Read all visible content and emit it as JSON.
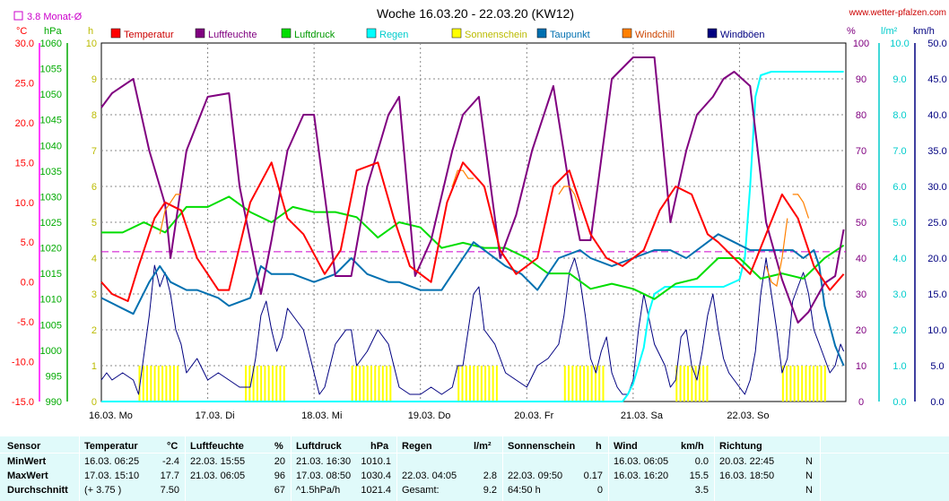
{
  "header": {
    "title": "Woche 16.03.20 - 22.03.20 (KW12)",
    "site": "www.wetter-pfalzen.com",
    "monthly_avg_label": "3.8 Monat-Ø"
  },
  "units": {
    "celsius": "°C",
    "hpa": "hPa",
    "hours": "h",
    "percent": "%",
    "rain": "l/m²",
    "speed": "km/h"
  },
  "colors": {
    "temperature": "#ff0000",
    "humidity": "#800080",
    "pressure": "#00dd00",
    "rain": "#00ffff",
    "sunshine": "#ffff00",
    "dewpoint": "#0070b0",
    "windchill": "#ff8000",
    "gust": "#000080",
    "avg_line": "#cc00cc"
  },
  "chart_data": {
    "type": "line",
    "x_tick_labels": [
      "16.03. Mo",
      "17.03. Di",
      "18.03. Mi",
      "19.03. Do",
      "20.03. Fr",
      "21.03. Sa",
      "22.03. So"
    ],
    "axes": {
      "celsius": {
        "ticks": [
          "30.0",
          "25.0",
          "20.0",
          "15.0",
          "10.0",
          "5.0",
          "0.0",
          "-5.0",
          "-10.0",
          "-15.0"
        ],
        "range": [
          -15,
          30
        ]
      },
      "hpa": {
        "ticks": [
          "1060",
          "1055",
          "1050",
          "1045",
          "1040",
          "1035",
          "1030",
          "1025",
          "1020",
          "1015",
          "1010",
          "1005",
          "1000",
          "995",
          "990"
        ],
        "range": [
          990,
          1060
        ]
      },
      "hours": {
        "ticks": [
          "10",
          "9",
          "8",
          "7",
          "6",
          "5",
          "4",
          "3",
          "2",
          "1",
          "0"
        ],
        "range": [
          0,
          10
        ]
      },
      "percent": {
        "ticks": [
          "100",
          "90",
          "80",
          "70",
          "60",
          "50",
          "40",
          "30",
          "20",
          "10",
          "0"
        ],
        "range": [
          0,
          100
        ]
      },
      "rain": {
        "ticks": [
          "10.0",
          "9.0",
          "8.0",
          "7.0",
          "6.0",
          "5.0",
          "4.0",
          "3.0",
          "2.0",
          "1.0",
          "0.0"
        ],
        "range": [
          0,
          10
        ]
      },
      "speed": {
        "ticks": [
          "50.0",
          "45.0",
          "40.0",
          "35.0",
          "30.0",
          "25.0",
          "20.0",
          "15.0",
          "10.0",
          "5.0",
          "0.0"
        ],
        "range": [
          0,
          50
        ]
      }
    },
    "monthly_avg_celsius": 3.8,
    "series": [
      {
        "name": "Temperatur",
        "axis": "celsius",
        "x": [
          0,
          0.1,
          0.25,
          0.35,
          0.5,
          0.6,
          0.75,
          0.9,
          1.1,
          1.2,
          1.4,
          1.6,
          1.75,
          1.9,
          2.1,
          2.25,
          2.4,
          2.6,
          2.75,
          2.9,
          3.1,
          3.25,
          3.4,
          3.6,
          3.75,
          3.9,
          4.1,
          4.25,
          4.4,
          4.6,
          4.75,
          4.9,
          5.1,
          5.25,
          5.4,
          5.55,
          5.7,
          5.8,
          5.95,
          6.1,
          6.25,
          6.4,
          6.55,
          6.7,
          6.85,
          6.98
        ],
        "y": [
          0,
          -1.5,
          -2.4,
          2,
          8,
          10,
          9,
          3,
          -1,
          -1,
          10,
          15,
          8,
          6,
          1,
          4,
          14,
          15,
          8,
          2,
          0,
          10,
          15,
          12,
          4,
          1,
          3,
          12,
          14,
          6,
          3,
          2,
          4,
          9,
          12,
          11,
          6,
          5,
          3,
          1,
          6,
          11,
          8,
          2,
          -1,
          1
        ]
      },
      {
        "name": "Luftfeuchte",
        "axis": "percent",
        "x": [
          0,
          0.1,
          0.3,
          0.45,
          0.6,
          0.65,
          0.8,
          1.0,
          1.2,
          1.3,
          1.5,
          1.6,
          1.75,
          1.9,
          2.0,
          2.2,
          2.35,
          2.5,
          2.7,
          2.8,
          2.95,
          3.1,
          3.3,
          3.4,
          3.55,
          3.75,
          3.9,
          4.05,
          4.25,
          4.4,
          4.5,
          4.6,
          4.8,
          5.0,
          5.2,
          5.35,
          5.5,
          5.6,
          5.75,
          5.85,
          5.95,
          6.1,
          6.25,
          6.4,
          6.55,
          6.65,
          6.8,
          6.9,
          6.98
        ],
        "y": [
          82,
          86,
          90,
          70,
          55,
          40,
          70,
          85,
          86,
          60,
          30,
          45,
          70,
          80,
          80,
          35,
          35,
          60,
          80,
          85,
          35,
          45,
          70,
          80,
          85,
          40,
          52,
          70,
          88,
          60,
          45,
          45,
          90,
          96,
          96,
          50,
          70,
          80,
          85,
          90,
          92,
          88,
          50,
          34,
          22,
          25,
          33,
          35,
          48
        ]
      },
      {
        "name": "Luftdruck",
        "axis": "hpa",
        "x": [
          0,
          0.2,
          0.4,
          0.6,
          0.8,
          1.0,
          1.2,
          1.4,
          1.6,
          1.8,
          2.0,
          2.2,
          2.4,
          2.6,
          2.8,
          3.0,
          3.2,
          3.4,
          3.6,
          3.8,
          4.0,
          4.2,
          4.4,
          4.6,
          4.8,
          5.0,
          5.2,
          5.4,
          5.6,
          5.8,
          6.0,
          6.2,
          6.4,
          6.6,
          6.8,
          6.98
        ],
        "y": [
          1023,
          1023,
          1025,
          1023,
          1028,
          1028,
          1030,
          1027,
          1025,
          1028,
          1027,
          1027,
          1026,
          1022,
          1025,
          1024,
          1020,
          1021,
          1020,
          1020,
          1018,
          1015,
          1015,
          1012,
          1013,
          1012,
          1010,
          1013,
          1014,
          1018,
          1018,
          1014,
          1015,
          1014,
          1018,
          1020.5
        ]
      },
      {
        "name": "Regen",
        "axis": "rain",
        "x": [
          0,
          4.9,
          4.95,
          5.0,
          5.05,
          5.1,
          5.15,
          5.2,
          5.3,
          5.5,
          5.7,
          5.85,
          6.0,
          6.05,
          6.1,
          6.15,
          6.2,
          6.3,
          6.98
        ],
        "y": [
          0,
          0,
          0.2,
          0.5,
          1.0,
          1.5,
          2.5,
          3.0,
          3.2,
          3.2,
          3.2,
          3.2,
          3.4,
          4.0,
          6.0,
          8.5,
          9.1,
          9.2,
          9.2
        ]
      },
      {
        "name": "Sonnenschein",
        "axis": "hours",
        "type": "bars",
        "blocks": [
          [
            0.35,
            0.72,
            1.0
          ],
          [
            1.35,
            1.72,
            1.0
          ],
          [
            2.35,
            2.72,
            1.0
          ],
          [
            3.35,
            3.72,
            1.0
          ],
          [
            4.35,
            4.72,
            1.0
          ],
          [
            5.4,
            5.72,
            1.0
          ],
          [
            6.4,
            6.82,
            1.0
          ]
        ]
      },
      {
        "name": "Taupunkt",
        "axis": "celsius",
        "x": [
          0,
          0.15,
          0.3,
          0.45,
          0.55,
          0.65,
          0.8,
          0.9,
          1.1,
          1.2,
          1.4,
          1.5,
          1.6,
          1.8,
          2.0,
          2.2,
          2.35,
          2.5,
          2.7,
          2.8,
          3.0,
          3.2,
          3.4,
          3.5,
          3.6,
          3.8,
          3.95,
          4.1,
          4.3,
          4.5,
          4.6,
          4.8,
          5.0,
          5.2,
          5.35,
          5.5,
          5.7,
          5.8,
          5.95,
          6.1,
          6.3,
          6.5,
          6.6,
          6.7,
          6.75,
          6.8,
          6.9,
          6.98
        ],
        "y": [
          -2,
          -3,
          -4,
          0,
          2,
          0,
          -1,
          -1,
          -2,
          -3,
          -2,
          2,
          1,
          1,
          0,
          1,
          3,
          1,
          0,
          0,
          -1,
          -1,
          3,
          5,
          4,
          2,
          1,
          -1,
          3,
          4,
          3,
          2,
          3,
          4,
          4,
          3,
          5,
          6,
          5,
          4,
          4,
          4,
          3,
          4,
          2,
          -3,
          -8,
          -10.5
        ]
      },
      {
        "name": "Windchill",
        "axis": "celsius",
        "x": [
          0.55,
          0.6,
          0.65,
          0.7,
          0.75,
          3.3,
          3.35,
          3.4,
          3.45,
          3.5,
          4.3,
          4.35,
          4.4,
          4.45,
          4.5,
          6.25,
          6.3,
          6.35,
          6.4,
          6.45,
          6.5,
          6.55,
          6.6,
          6.65
        ],
        "y": [
          6,
          9,
          10,
          11,
          11,
          12,
          14,
          14,
          13,
          13,
          11,
          12,
          12,
          11,
          9,
          2,
          0,
          -0.5,
          3,
          8,
          11,
          11,
          10,
          8
        ]
      },
      {
        "name": "Windböen",
        "axis": "speed",
        "x": [
          0,
          0.05,
          0.1,
          0.2,
          0.3,
          0.35,
          0.45,
          0.5,
          0.55,
          0.6,
          0.65,
          0.7,
          0.75,
          0.8,
          0.9,
          1.0,
          1.1,
          1.2,
          1.3,
          1.4,
          1.45,
          1.5,
          1.55,
          1.6,
          1.65,
          1.7,
          1.75,
          1.8,
          1.9,
          2.0,
          2.05,
          2.1,
          2.2,
          2.3,
          2.35,
          2.4,
          2.5,
          2.6,
          2.7,
          2.8,
          2.9,
          3.0,
          3.1,
          3.2,
          3.3,
          3.35,
          3.4,
          3.5,
          3.55,
          3.6,
          3.7,
          3.8,
          3.9,
          4.0,
          4.1,
          4.2,
          4.3,
          4.35,
          4.4,
          4.45,
          4.5,
          4.55,
          4.6,
          4.65,
          4.7,
          4.75,
          4.8,
          4.85,
          4.9,
          4.95,
          5.0,
          5.05,
          5.1,
          5.2,
          5.3,
          5.35,
          5.4,
          5.45,
          5.5,
          5.55,
          5.6,
          5.65,
          5.7,
          5.75,
          5.8,
          5.85,
          5.9,
          5.95,
          6.0,
          6.05,
          6.1,
          6.15,
          6.2,
          6.25,
          6.3,
          6.35,
          6.4,
          6.45,
          6.5,
          6.55,
          6.6,
          6.65,
          6.7,
          6.75,
          6.8,
          6.85,
          6.9,
          6.95,
          6.98
        ],
        "y": [
          3,
          4,
          3,
          4,
          3,
          1,
          12,
          19,
          16,
          18,
          15,
          10,
          8,
          4,
          6,
          3,
          4,
          3,
          2,
          2,
          6,
          12,
          14,
          10,
          7,
          9,
          13,
          12,
          10,
          4,
          1,
          2,
          8,
          10,
          10,
          5,
          7,
          10,
          8,
          2,
          1,
          1,
          2,
          1,
          2,
          5,
          5,
          15,
          16,
          10,
          8,
          4,
          3,
          2,
          5,
          6,
          8,
          12,
          18,
          20,
          17,
          12,
          6,
          4,
          7,
          9,
          4,
          2,
          1,
          1,
          3,
          10,
          15,
          8,
          5,
          2,
          3,
          9,
          10,
          5,
          3,
          7,
          12,
          15,
          10,
          6,
          4,
          3,
          2,
          1,
          3,
          7,
          15,
          20,
          15,
          10,
          4,
          6,
          14,
          16,
          18,
          15,
          10,
          8,
          6,
          4,
          5,
          8,
          7
        ]
      }
    ]
  },
  "stats_table": {
    "headers": {
      "sensor": "Sensor",
      "temp": "Temperatur",
      "temp_unit": "°C",
      "hum": "Luftfeuchte",
      "hum_unit": "%",
      "press": "Luftdruck",
      "press_unit": "hPa",
      "rain": "Regen",
      "rain_unit": "l/m²",
      "sun": "Sonnenschein",
      "sun_unit": "h",
      "wind": "Wind",
      "wind_unit": "km/h",
      "dir": "Richtung"
    },
    "rows": [
      {
        "label": "MinWert",
        "temp_time": "16.03.  06:25",
        "temp_val": "-2.4",
        "hum_time": "22.03.  15:55",
        "hum_val": "20",
        "press_time": "21.03.  16:30",
        "press_val": "1010.1",
        "rain_time": "",
        "rain_val": "",
        "sun_time": "",
        "sun_val": "",
        "wind_time": "16.03.  06:05",
        "wind_val": "0.0",
        "dir_time": "20.03.  22:45",
        "dir_val": "N"
      },
      {
        "label": "MaxWert",
        "temp_time": "17.03.  15:10",
        "temp_val": "17.7",
        "hum_time": "21.03.  06:05",
        "hum_val": "96",
        "press_time": "17.03.  08:50",
        "press_val": "1030.4",
        "rain_time": "22.03.  04:05",
        "rain_val": "2.8",
        "sun_time": "22.03.  09:50",
        "sun_val": "0.17",
        "wind_time": "16.03.  16:20",
        "wind_val": "15.5",
        "dir_time": "16.03.  18:50",
        "dir_val": "N"
      },
      {
        "label": "Durchschnitt",
        "temp_time": "(+ 3.75 )",
        "temp_val": "7.50",
        "hum_time": "",
        "hum_val": "67",
        "press_time": "^1.5hPa/h",
        "press_val": "1021.4",
        "rain_time": "Gesamt:",
        "rain_val": "9.2",
        "sun_time": "64:50 h",
        "sun_val": "0",
        "wind_time": "",
        "wind_val": "3.5",
        "dir_time": "",
        "dir_val": "N"
      }
    ]
  }
}
